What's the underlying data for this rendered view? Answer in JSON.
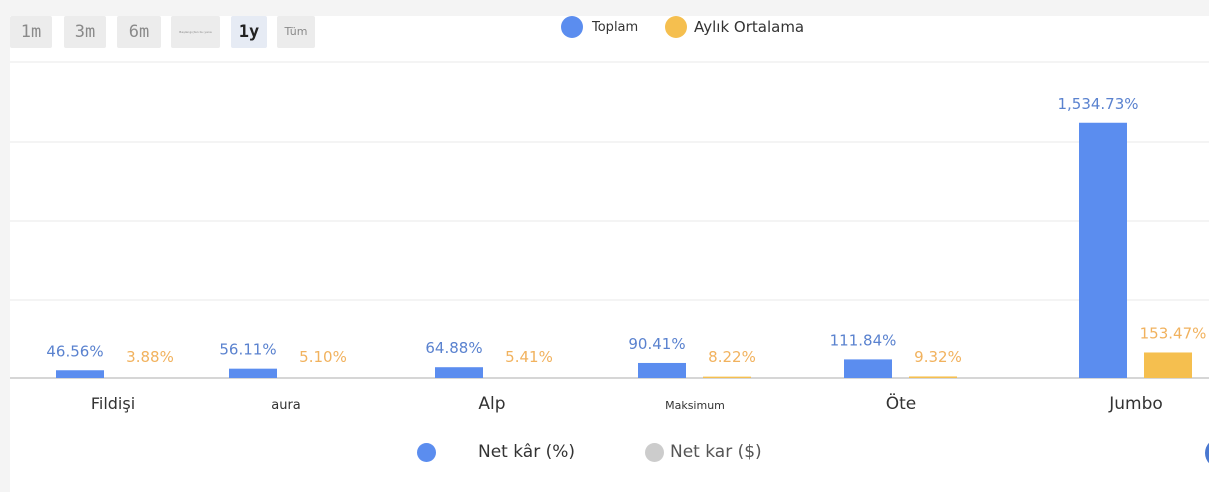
{
  "range_buttons": [
    {
      "label": "1m",
      "active": false
    },
    {
      "label": "3m",
      "active": false
    },
    {
      "label": "6m",
      "active": false
    },
    {
      "label": "Başlangıçtan bu yana",
      "active": false
    },
    {
      "label": "1y",
      "active": true
    },
    {
      "label": "Tüm",
      "active": false
    }
  ],
  "legend_top": {
    "total": "Toplam",
    "monthly": "Aylık Ortalama"
  },
  "legend_bottom": {
    "percent": "Net kâr (%)",
    "dollar": "Net kar ($)"
  },
  "colors": {
    "total": "#5b8def",
    "monthly": "#f5bf4f",
    "inactive": "#cccccc",
    "label_total": "#5a82cf",
    "label_monthly": "#f1b25e"
  },
  "chart_data": {
    "type": "bar",
    "categories": [
      "Fildişi",
      "aura",
      "Alp",
      "Maksimum",
      "Öte",
      "Jumbo"
    ],
    "series": [
      {
        "name": "Toplam",
        "values": [
          46.56,
          56.11,
          64.88,
          90.41,
          111.84,
          1534.73
        ],
        "labels": [
          "46.56%",
          "56.11%",
          "64.88%",
          "90.41%",
          "111.84%",
          "1,534.73%"
        ]
      },
      {
        "name": "Aylık Ortalama",
        "values": [
          3.88,
          5.1,
          5.41,
          8.22,
          9.32,
          153.47
        ],
        "labels": [
          "3.88%",
          "5.10%",
          "5.41%",
          "8.22%",
          "9.32%",
          "153.47%"
        ]
      }
    ],
    "ylim": [
      0,
      1900
    ],
    "grid": true,
    "legend": "top"
  }
}
